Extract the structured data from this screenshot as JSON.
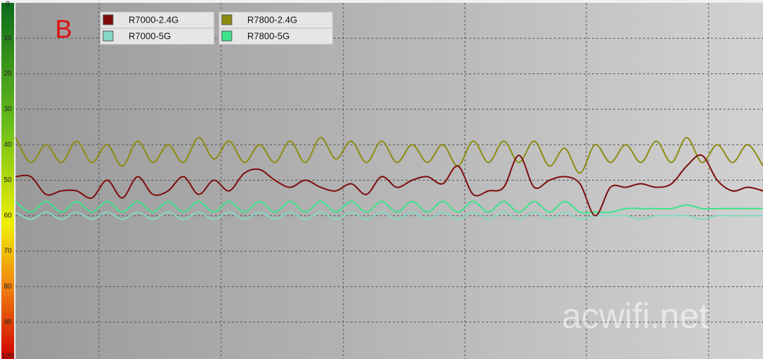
{
  "chart_data": {
    "type": "line",
    "annotation": "B",
    "watermark": "acwifi.net",
    "ylim": [
      0,
      100
    ],
    "y_reversed": true,
    "yticks": [
      0,
      10,
      20,
      30,
      40,
      50,
      60,
      70,
      80,
      90,
      100
    ],
    "grid": true,
    "series": [
      {
        "name": "R7000-2.4G",
        "color": "#7d0d0d",
        "values": [
          49,
          49,
          54,
          53,
          53,
          55,
          50,
          55,
          49,
          54,
          53,
          49,
          54,
          50,
          53,
          48,
          47,
          50,
          52,
          50,
          52,
          53,
          51,
          54,
          49,
          52,
          50,
          49,
          51,
          46,
          54,
          53,
          52,
          43,
          52,
          50,
          49,
          51,
          60,
          52,
          52,
          51,
          52,
          51,
          46,
          43,
          50,
          53,
          52,
          53
        ]
      },
      {
        "name": "R7800-2.4G",
        "color": "#8c8c12",
        "values": [
          38,
          45,
          40,
          45,
          39,
          45,
          40,
          46,
          39,
          45,
          40,
          45,
          38,
          44,
          39,
          45,
          40,
          45,
          39,
          45,
          38,
          44,
          39,
          45,
          39,
          45,
          40,
          45,
          40,
          46,
          39,
          45,
          39,
          45,
          39,
          46,
          41,
          48,
          40,
          45,
          40,
          45,
          39,
          45,
          38,
          45,
          40,
          45,
          40,
          46
        ]
      },
      {
        "name": "R7000-5G",
        "color": "#86d6c4",
        "values": [
          59,
          61,
          59,
          61,
          59,
          61,
          59,
          61,
          59,
          61,
          59,
          61,
          59,
          61,
          59,
          61,
          59,
          61,
          59,
          61,
          59,
          61,
          59,
          61,
          59,
          61,
          59,
          61,
          59,
          61,
          59,
          61,
          59,
          61,
          59,
          61,
          59,
          61,
          60,
          60,
          60,
          61,
          60,
          60,
          60,
          61,
          60,
          60,
          60,
          60
        ]
      },
      {
        "name": "R7800-5G",
        "color": "#3de38c",
        "values": [
          56,
          59,
          56,
          59,
          56,
          59,
          56,
          59,
          56,
          59,
          56,
          59,
          56,
          59,
          56,
          59,
          56,
          59,
          56,
          59,
          56,
          59,
          56,
          59,
          56,
          59,
          56,
          59,
          56,
          59,
          56,
          59,
          56,
          59,
          56,
          59,
          56,
          59,
          59,
          59,
          58,
          58,
          58,
          58,
          57,
          58,
          58,
          58,
          58,
          58
        ]
      }
    ]
  }
}
